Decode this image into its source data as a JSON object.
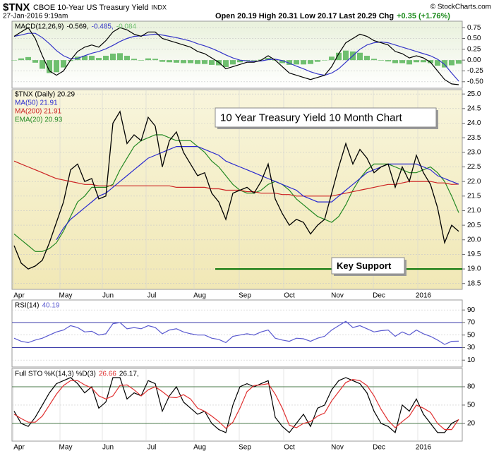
{
  "header": {
    "symbol": "$TNX",
    "name": "CBOE 10-Year US Treasury Yield",
    "exchange": "INDX",
    "date": "27-Jan-2016 9:19am",
    "quote": "Open 20.19 High 20.31 Low 20.17 Last 20.29 Chg",
    "change": "+0.35 (+1.76%)",
    "credit": "© StockCharts.com"
  },
  "chart_data": [
    {
      "type": "line",
      "title": "MACD(12,26,9)",
      "xlim": [
        -0.3,
        63.5
      ],
      "ylim": [
        -0.65,
        0.9
      ],
      "yticks": [
        0.75,
        {
          "value": 0.5,
          "label": "0.50"
        },
        0.25,
        {
          "value": 0,
          "label": "0.00"
        },
        -0.25,
        {
          "value": -0.5,
          "label": "-0.50"
        }
      ],
      "grid": true,
      "series": [
        {
          "name": "-0.084",
          "type": "bar",
          "color": "#6fbf6f",
          "values": [
            0,
            0.04,
            0.07,
            -0.06,
            -0.2,
            -0.3,
            -0.28,
            -0.17,
            -0.02,
            0.08,
            0.1,
            0.1,
            0.05,
            0.1,
            0.15,
            0.16,
            0.1,
            0.03,
            -0.01,
            0.04,
            0.03,
            -0.04,
            -0.05,
            -0.06,
            -0.07,
            -0.07,
            -0.09,
            -0.09,
            -0.11,
            -0.12,
            -0.16,
            -0.1,
            -0.05,
            -0.02,
            -0.01,
            0.01,
            0.05,
            -0.01,
            -0.07,
            -0.11,
            -0.1,
            -0.1,
            -0.09,
            -0.04,
            0.0,
            0.08,
            0.17,
            0.22,
            0.2,
            0.17,
            0.1,
            0.03,
            -0.01,
            -0.03,
            -0.07,
            -0.07,
            -0.1,
            -0.05,
            -0.05,
            -0.07,
            -0.13,
            -0.17,
            -0.12,
            -0.084
          ]
        },
        {
          "name": "-0.485,",
          "color": "#3434c8",
          "values": [
            0.55,
            0.58,
            0.62,
            0.62,
            0.52,
            0.38,
            0.22,
            0.1,
            0.03,
            0.04,
            0.1,
            0.16,
            0.2,
            0.26,
            0.34,
            0.43,
            0.5,
            0.55,
            0.56,
            0.58,
            0.6,
            0.58,
            0.55,
            0.52,
            0.48,
            0.44,
            0.38,
            0.33,
            0.27,
            0.2,
            0.12,
            0.05,
            0.0,
            -0.02,
            -0.03,
            -0.02,
            0.01,
            0.02,
            -0.01,
            -0.07,
            -0.14,
            -0.2,
            -0.27,
            -0.32,
            -0.35,
            -0.3,
            -0.2,
            -0.05,
            0.1,
            0.25,
            0.35,
            0.4,
            0.42,
            0.4,
            0.35,
            0.3,
            0.25,
            0.2,
            0.15,
            0.1,
            0.02,
            -0.1,
            -0.3,
            -0.485
          ]
        },
        {
          "name": "-0.569,",
          "color": "#000000",
          "values": [
            0.55,
            0.65,
            0.75,
            0.5,
            0.1,
            -0.25,
            -0.35,
            -0.25,
            0.0,
            0.2,
            0.3,
            0.35,
            0.3,
            0.45,
            0.65,
            0.75,
            0.7,
            0.6,
            0.55,
            0.65,
            0.65,
            0.5,
            0.45,
            0.4,
            0.35,
            0.3,
            0.2,
            0.15,
            0.05,
            -0.05,
            -0.2,
            -0.15,
            -0.1,
            -0.05,
            -0.05,
            0.0,
            0.1,
            0.0,
            -0.15,
            -0.3,
            -0.35,
            -0.4,
            -0.45,
            -0.4,
            -0.35,
            -0.15,
            0.15,
            0.4,
            0.5,
            0.6,
            0.55,
            0.45,
            0.4,
            0.35,
            0.2,
            0.15,
            0.05,
            0.1,
            0.05,
            -0.05,
            -0.25,
            -0.45,
            -0.55,
            -0.569
          ]
        }
      ]
    },
    {
      "type": "line",
      "xlim": [
        -0.3,
        63.5
      ],
      "ylim": [
        18.3,
        25.15
      ],
      "yticks": [
        {
          "value": 25,
          "label": "25.0"
        },
        24.5,
        {
          "value": 24,
          "label": "24.0"
        },
        23.5,
        {
          "value": 23,
          "label": "23.0"
        },
        22.5,
        {
          "value": 22,
          "label": "22.0"
        },
        21.5,
        {
          "value": 21,
          "label": "21.0"
        },
        20.5,
        {
          "value": 20,
          "label": "20.0"
        },
        19.5,
        {
          "value": 19,
          "label": "19.0"
        },
        18.5
      ],
      "grid": true,
      "xticks": [
        {
          "value": 0.7,
          "label": "Apr"
        },
        {
          "value": 7.3,
          "label": "May"
        },
        {
          "value": 13.3,
          "label": "Jun"
        },
        {
          "value": 19.5,
          "label": "Jul"
        },
        {
          "value": 26.3,
          "label": "Aug"
        },
        {
          "value": 32.7,
          "label": "Sep"
        },
        {
          "value": 39,
          "label": "Oct"
        },
        {
          "value": 45.8,
          "label": "Nov"
        },
        {
          "value": 51.7,
          "label": "Dec"
        },
        {
          "value": 58,
          "label": "2016"
        }
      ],
      "series": [
        {
          "name": "$TNX (Daily) 20.29",
          "color": "#000000",
          "values": [
            19.8,
            19.2,
            19.0,
            19.1,
            19.3,
            19.9,
            20.6,
            21.3,
            22.4,
            22.6,
            22.0,
            22.1,
            21.4,
            21.5,
            24.0,
            24.4,
            23.3,
            23.6,
            23.4,
            24.2,
            23.9,
            22.5,
            23.4,
            23.7,
            23.0,
            22.6,
            22.2,
            22.3,
            21.6,
            21.3,
            20.7,
            21.6,
            21.7,
            21.8,
            21.6,
            22.0,
            22.6,
            21.4,
            20.9,
            20.5,
            20.7,
            20.6,
            20.2,
            20.5,
            20.7,
            21.6,
            22.5,
            23.3,
            22.6,
            23.1,
            22.8,
            22.3,
            22.5,
            22.6,
            21.8,
            22.5,
            22.0,
            22.9,
            22.3,
            21.9,
            21.1,
            19.9,
            20.5,
            20.29
          ]
        },
        {
          "name": "MA(50) 21.91",
          "color": "#2a2ad0",
          "values": [
            null,
            null,
            null,
            null,
            null,
            null,
            20.0,
            20.4,
            20.7,
            20.9,
            21.1,
            21.3,
            21.5,
            21.6,
            21.8,
            22.0,
            22.2,
            22.4,
            22.6,
            22.8,
            22.9,
            23.0,
            23.1,
            23.2,
            23.2,
            23.2,
            23.2,
            23.1,
            23.0,
            22.9,
            22.7,
            22.6,
            22.5,
            22.4,
            22.3,
            22.2,
            22.1,
            22.0,
            21.9,
            21.8,
            21.7,
            21.5,
            21.4,
            21.3,
            21.3,
            21.3,
            21.5,
            21.7,
            21.9,
            22.1,
            22.3,
            22.4,
            22.5,
            22.6,
            22.6,
            22.6,
            22.6,
            22.6,
            22.5,
            22.4,
            22.2,
            22.1,
            22.0,
            21.91
          ]
        },
        {
          "name": "MA(200) 21.91",
          "color": "#cc2222",
          "values": [
            22.7,
            22.6,
            22.5,
            22.4,
            22.3,
            22.2,
            22.1,
            22.05,
            22.0,
            21.95,
            21.9,
            21.9,
            21.85,
            21.85,
            21.85,
            21.85,
            21.85,
            21.85,
            21.85,
            21.85,
            21.85,
            21.85,
            21.85,
            21.8,
            21.8,
            21.8,
            21.8,
            21.8,
            21.75,
            21.75,
            21.7,
            21.7,
            21.7,
            21.65,
            21.65,
            21.6,
            21.6,
            21.6,
            21.55,
            21.55,
            21.5,
            21.5,
            21.5,
            21.5,
            21.5,
            21.5,
            21.55,
            21.6,
            21.65,
            21.7,
            21.75,
            21.8,
            21.85,
            21.9,
            21.9,
            21.95,
            22.0,
            22.0,
            22.0,
            22.0,
            21.95,
            21.95,
            21.9,
            21.91
          ]
        },
        {
          "name": "EMA(20) 20.93",
          "color": "#228822",
          "values": [
            20.2,
            20.0,
            19.8,
            19.6,
            19.6,
            19.7,
            19.9,
            20.3,
            20.8,
            21.3,
            21.5,
            21.8,
            21.8,
            21.8,
            21.9,
            22.4,
            22.8,
            23.2,
            23.4,
            23.5,
            23.6,
            23.6,
            23.5,
            23.4,
            23.4,
            23.4,
            23.2,
            23.0,
            22.7,
            22.5,
            22.2,
            21.9,
            21.7,
            21.6,
            21.6,
            21.7,
            21.9,
            22.0,
            21.9,
            21.7,
            21.4,
            21.2,
            21.0,
            20.8,
            20.7,
            20.6,
            20.8,
            21.2,
            21.7,
            22.1,
            22.4,
            22.6,
            22.6,
            22.6,
            22.5,
            22.4,
            22.3,
            22.3,
            22.4,
            22.5,
            22.3,
            22.0,
            21.5,
            20.93
          ]
        }
      ],
      "annotations": [
        {
          "text": "10 Year Treasury Yield 10 Month Chart"
        },
        {
          "text": "Key Support"
        }
      ],
      "support_level": 19.0,
      "support_color": "#007000"
    },
    {
      "type": "line",
      "title": "RSI(14)",
      "xlim": [
        -0.3,
        63.5
      ],
      "ylim": [
        -1,
        106
      ],
      "yticks": [
        90,
        70,
        50,
        30,
        10
      ],
      "grid": true,
      "reference_lines": [
        70,
        30
      ],
      "reference_color": "#3a3aa8",
      "series": [
        {
          "name": "40.19",
          "color": "#5a5ad0",
          "values": [
            45,
            40,
            38,
            42,
            45,
            50,
            55,
            58,
            65,
            62,
            55,
            56,
            50,
            52,
            68,
            70,
            60,
            62,
            60,
            65,
            62,
            52,
            58,
            60,
            55,
            52,
            50,
            50,
            45,
            43,
            38,
            48,
            50,
            52,
            50,
            55,
            58,
            45,
            42,
            40,
            45,
            44,
            40,
            45,
            48,
            58,
            65,
            72,
            62,
            65,
            60,
            55,
            57,
            58,
            48,
            55,
            50,
            58,
            52,
            48,
            42,
            35,
            40,
            40.19
          ]
        }
      ]
    },
    {
      "type": "line",
      "title": "Full STO %K(14,3) %D(3)",
      "xlim": [
        -0.3,
        63.5
      ],
      "ylim": [
        -9,
        110
      ],
      "yticks": [
        80,
        50,
        20
      ],
      "grid": true,
      "reference_lines": [
        80,
        20
      ],
      "reference_color": "#4a7a4a",
      "xticks": [
        {
          "value": 0.7,
          "label": "Apr"
        },
        {
          "value": 7.3,
          "label": "May"
        },
        {
          "value": 13.3,
          "label": "Jun"
        },
        {
          "value": 19.5,
          "label": "Jul"
        },
        {
          "value": 26.3,
          "label": "Aug"
        },
        {
          "value": 32.7,
          "label": "Sep"
        },
        {
          "value": 39,
          "label": "Oct"
        },
        {
          "value": 45.8,
          "label": "Nov"
        },
        {
          "value": 51.7,
          "label": "Dec"
        },
        {
          "value": 58,
          "label": "2016"
        }
      ],
      "series": [
        {
          "name": "26.17,",
          "color": "#000000",
          "values": [
            40,
            20,
            15,
            30,
            50,
            70,
            85,
            90,
            95,
            85,
            70,
            80,
            45,
            55,
            95,
            95,
            60,
            70,
            65,
            90,
            85,
            40,
            65,
            80,
            55,
            45,
            35,
            40,
            20,
            10,
            5,
            50,
            80,
            85,
            80,
            85,
            90,
            30,
            15,
            5,
            20,
            35,
            15,
            45,
            50,
            75,
            90,
            95,
            90,
            85,
            70,
            40,
            20,
            15,
            5,
            50,
            40,
            60,
            35,
            20,
            5,
            5,
            20,
            26.17
          ]
        },
        {
          "name": "26.66",
          "color": "#e03030",
          "values": [
            35,
            28,
            22,
            22,
            32,
            50,
            68,
            82,
            90,
            90,
            83,
            78,
            65,
            60,
            65,
            82,
            83,
            75,
            65,
            75,
            80,
            72,
            63,
            62,
            67,
            60,
            45,
            40,
            32,
            23,
            12,
            22,
            45,
            72,
            82,
            83,
            85,
            68,
            45,
            17,
            13,
            20,
            23,
            32,
            37,
            57,
            72,
            87,
            92,
            90,
            82,
            65,
            43,
            25,
            13,
            23,
            32,
            50,
            45,
            38,
            20,
            10,
            10,
            26.66
          ]
        }
      ]
    }
  ]
}
